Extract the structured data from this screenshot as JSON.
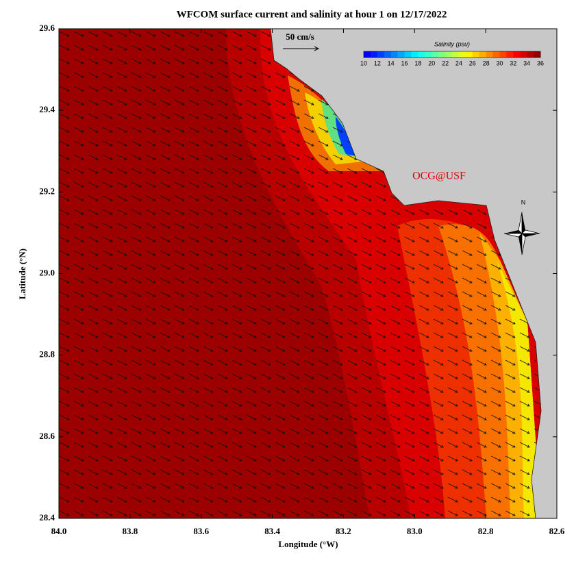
{
  "title": "WFCOM surface current and salinity at hour 1 on 12/17/2022",
  "x_axis": {
    "label": "Longitude (°W)",
    "lim": [
      84.0,
      82.6
    ],
    "ticks": [
      {
        "value": 84,
        "label": "84.0"
      },
      {
        "value": 83.8,
        "label": "83.8"
      },
      {
        "value": 83.6,
        "label": "83.6"
      },
      {
        "value": 83.4,
        "label": "83.4"
      },
      {
        "value": 83.2,
        "label": "83.2"
      },
      {
        "value": 83,
        "label": "83.0"
      },
      {
        "value": 82.8,
        "label": "82.8"
      },
      {
        "value": 82.6,
        "label": "82.6"
      }
    ]
  },
  "y_axis": {
    "label": "Latitude (°N)",
    "lim": [
      28.4,
      29.6
    ],
    "ticks": [
      {
        "value": 29.6,
        "label": "29.6"
      },
      {
        "value": 29.4,
        "label": "29.4"
      },
      {
        "value": 29.2,
        "label": "29.2"
      },
      {
        "value": 29,
        "label": "29.0"
      },
      {
        "value": 28.8,
        "label": "28.8"
      },
      {
        "value": 28.6,
        "label": "28.6"
      },
      {
        "value": 28.4,
        "label": "28.4"
      }
    ]
  },
  "colorbar": {
    "title": "Salinity (psu)",
    "lim": [
      10,
      36
    ],
    "ticks": [
      10,
      12,
      14,
      16,
      18,
      20,
      22,
      24,
      26,
      28,
      30,
      32,
      34,
      36
    ]
  },
  "scale_arrow": "50 cm/s",
  "credit": "OCG@USF",
  "compass": "N"
}
